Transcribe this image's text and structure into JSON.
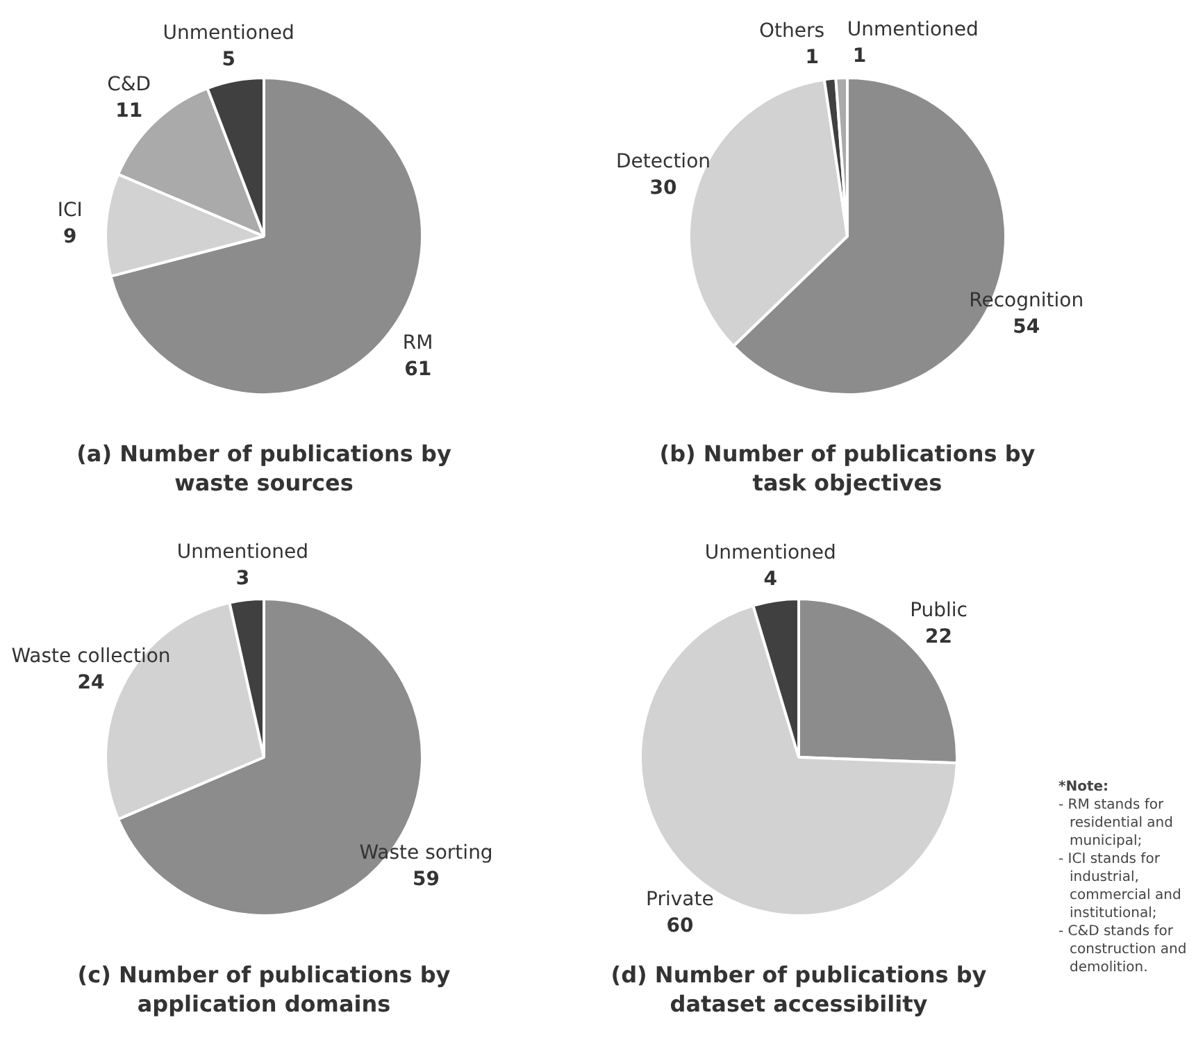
{
  "chart_data": [
    {
      "type": "pie",
      "title": "(a) Number of publications by waste sources",
      "categories": [
        "RM",
        "ICI",
        "C&D",
        "Unmentioned"
      ],
      "values": [
        61,
        9,
        11,
        5
      ],
      "colors": [
        "#8c8c8c",
        "#d2d2d2",
        "#aaaaaa",
        "#404040"
      ],
      "data_labels": true,
      "legend": false
    },
    {
      "type": "pie",
      "title": "(b) Number of publications by task objectives",
      "categories": [
        "Recognition",
        "Detection",
        "Others",
        "Unmentioned"
      ],
      "values": [
        54,
        30,
        1,
        1
      ],
      "colors": [
        "#8c8c8c",
        "#d2d2d2",
        "#404040",
        "#aaaaaa"
      ],
      "data_labels": true,
      "legend": false
    },
    {
      "type": "pie",
      "title": "(c) Number of publications by application domains",
      "categories": [
        "Waste sorting",
        "Waste collection",
        "Unmentioned"
      ],
      "values": [
        59,
        24,
        3
      ],
      "colors": [
        "#8c8c8c",
        "#d2d2d2",
        "#404040"
      ],
      "data_labels": true,
      "legend": false
    },
    {
      "type": "pie",
      "title": "(d) Number of publications by dataset accessibility",
      "categories": [
        "Public",
        "Private",
        "Unmentioned"
      ],
      "values": [
        22,
        60,
        4
      ],
      "colors": [
        "#8c8c8c",
        "#d2d2d2",
        "#404040"
      ],
      "data_labels": true,
      "legend": false,
      "annotations": [
        "*Note:",
        "- RM stands for residential and municipal;",
        "- ICI stands for industrial, commercial and institutional;",
        "- C&D stands for construction and demolition."
      ]
    }
  ]
}
